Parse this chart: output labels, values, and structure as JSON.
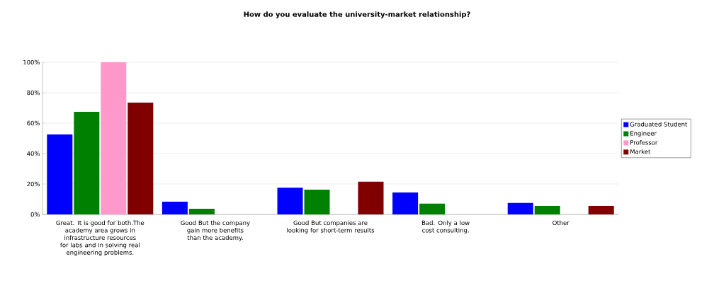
{
  "chart_data": {
    "type": "bar",
    "title": "How do you evaluate the university-market relationship?",
    "categories": [
      "Great. It is good for both.The academy area grows in infrastructure resources for labs and in solving real engineering problems.",
      "Good But the company gain more benefits than the academy.",
      "Good But companies are looking for short-term results",
      "Bad. Only a low cost consulting.",
      "Other"
    ],
    "series": [
      {
        "name": "Graduated Student",
        "color": "#0000ff",
        "values": [
          52.6,
          8.4,
          17.6,
          14.4,
          7.6
        ]
      },
      {
        "name": "Engineer",
        "color": "#008000",
        "values": [
          67.4,
          3.7,
          16.3,
          7.1,
          5.6
        ]
      },
      {
        "name": "Professor",
        "color": "#ff99cc",
        "values": [
          100,
          0,
          0,
          0,
          0
        ]
      },
      {
        "name": "Market",
        "color": "#800000",
        "values": [
          73.5,
          0,
          21.5,
          0,
          5.6
        ]
      }
    ],
    "ylim": [
      0,
      100
    ],
    "yticks": [
      {
        "value": 0,
        "label": "0%"
      },
      {
        "value": 20,
        "label": "20%"
      },
      {
        "value": 40,
        "label": "40%"
      },
      {
        "value": 60,
        "label": "60%"
      },
      {
        "value": 80,
        "label": "80%"
      },
      {
        "value": 100,
        "label": "100%"
      }
    ],
    "grid": "y",
    "legend": "right"
  }
}
